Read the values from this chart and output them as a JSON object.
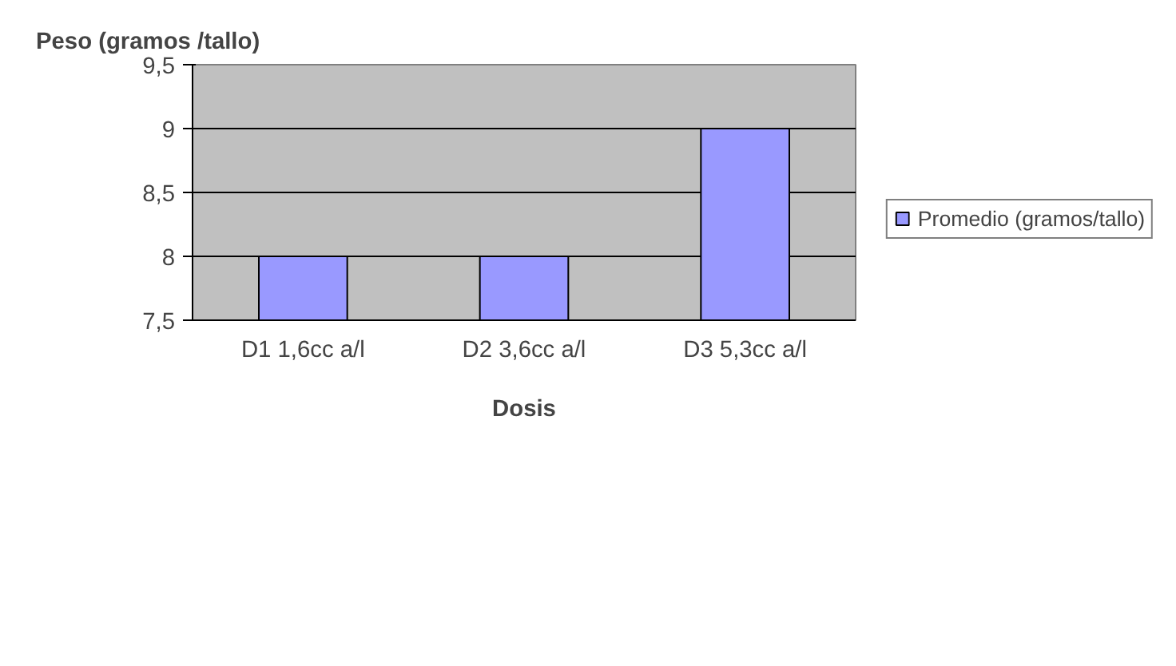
{
  "chart_data": {
    "type": "bar",
    "ylabel": "Peso (gramos /tallo)",
    "xlabel": "Dosis",
    "categories": [
      "D1 1,6cc a/l",
      "D2 3,6cc a/l",
      "D3 5,3cc a/l"
    ],
    "series": [
      {
        "name": "Promedio (gramos/tallo)",
        "color": "#9999ff",
        "values": [
          8,
          8,
          9
        ]
      }
    ],
    "ylim": [
      7.5,
      9.5
    ],
    "yticks": [
      {
        "value": 7.5,
        "label": "7,5"
      },
      8,
      {
        "value": 8.5,
        "label": "8,5"
      },
      9,
      {
        "value": 9.5,
        "label": "9,5"
      }
    ],
    "grid": "y",
    "legend": "right"
  }
}
